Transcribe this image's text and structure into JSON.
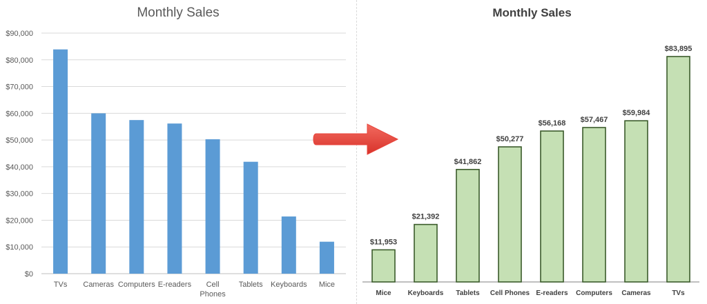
{
  "colors": {
    "left_bar": "#5b9bd5",
    "right_bar_fill": "#c5e0b4",
    "right_bar_stroke": "#3a5a2a",
    "arrow": "#e8433a",
    "grid": "#d9d9d9",
    "text": "#595959"
  },
  "arrow_icon": "right-arrow-icon",
  "chart_data": [
    {
      "type": "bar",
      "title": "Monthly Sales",
      "categories": [
        "TVs",
        "Cameras",
        "Computers",
        "E-readers",
        "Cell Phones",
        "Tablets",
        "Keyboards",
        "Mice"
      ],
      "category_lines": [
        [
          "TVs"
        ],
        [
          "Cameras"
        ],
        [
          "Computers"
        ],
        [
          "E-readers"
        ],
        [
          "Cell",
          "Phones"
        ],
        [
          "Tablets"
        ],
        [
          "Keyboards"
        ],
        [
          "Mice"
        ]
      ],
      "values": [
        83895,
        59984,
        57467,
        56168,
        50277,
        41862,
        21392,
        11953
      ],
      "ylim": [
        0,
        90000
      ],
      "y_ticks": [
        "$0",
        "$10,000",
        "$20,000",
        "$30,000",
        "$40,000",
        "$50,000",
        "$60,000",
        "$70,000",
        "$80,000",
        "$90,000"
      ],
      "grid": true,
      "sort": "descending"
    },
    {
      "type": "bar",
      "title": "Monthly Sales",
      "categories": [
        "Mice",
        "Keyboards",
        "Tablets",
        "Cell Phones",
        "E-readers",
        "Computers",
        "Cameras",
        "TVs"
      ],
      "values": [
        11953,
        21392,
        41862,
        50277,
        56168,
        57467,
        59984,
        83895
      ],
      "data_labels": [
        "$11,953",
        "$21,392",
        "$41,862",
        "$50,277",
        "$56,168",
        "$57,467",
        "$59,984",
        "$83,895"
      ],
      "grid": false,
      "sort": "ascending"
    }
  ]
}
